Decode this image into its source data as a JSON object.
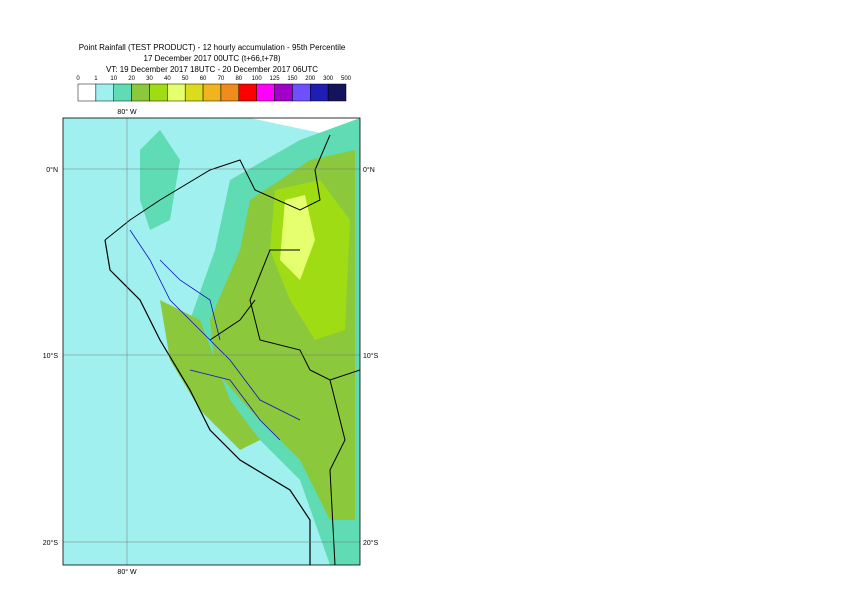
{
  "header": {
    "title": "Point Rainfall (TEST PRODUCT) - 12 hourly accumulation - 95th Percentile",
    "run": "17 December 2017 00UTC (t+66,t+78)",
    "valid": "VT: 19 December 2017 18UTC - 20 December 2017 06UTC"
  },
  "legend": {
    "ticks": [
      "0",
      "1",
      "10",
      "20",
      "30",
      "40",
      "50",
      "60",
      "70",
      "80",
      "100",
      "125",
      "150",
      "200",
      "300",
      "500"
    ],
    "colors": [
      "#ffffff",
      "#a0f0f0",
      "#5fdcb4",
      "#8cc83c",
      "#a0dc14",
      "#e6ff6e",
      "#dcdc1e",
      "#f0b41e",
      "#f08c1e",
      "#ff0000",
      "#ff00ff",
      "#a000c8",
      "#6e50ff",
      "#1e1eb4",
      "#14145a"
    ]
  },
  "map": {
    "lon_top": "80° W",
    "lon_bottom": "80° W",
    "lat_left": [
      "0°N",
      "10°S",
      "20°S"
    ],
    "lat_right": [
      "0°N",
      "10°S",
      "20°S"
    ]
  }
}
